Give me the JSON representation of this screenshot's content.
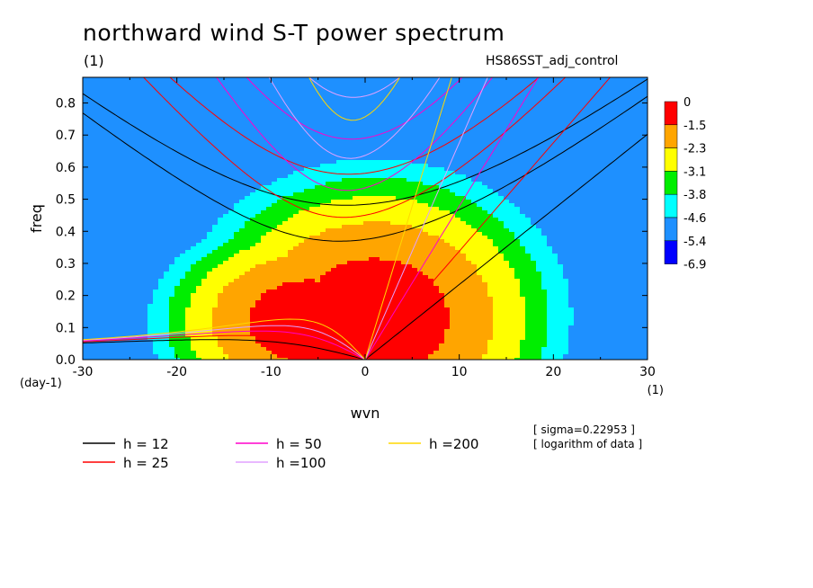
{
  "chart_data": {
    "type": "heatmap",
    "title": "northward wind S-T power spectrum",
    "subtitle": "(1)",
    "run_label": "HS86SST_adj_control",
    "xlabel": "wvn",
    "xlabel_unit": "(1)",
    "ylabel": "freq",
    "ylabel_unit": "(day-1)",
    "xlim": [
      -30,
      30
    ],
    "ylim": [
      0,
      0.88
    ],
    "x_ticks": [
      -30,
      -20,
      -10,
      0,
      10,
      20,
      30
    ],
    "x_tick_labels": [
      "-30",
      "-20",
      "-10",
      "0",
      "10",
      "20",
      "30"
    ],
    "y_ticks": [
      0,
      0.1,
      0.2,
      0.3,
      0.4,
      0.5,
      0.6,
      0.7,
      0.8
    ],
    "y_tick_labels": [
      "0.0",
      "0.1",
      "0.2",
      "0.3",
      "0.4",
      "0.5",
      "0.6",
      "0.7",
      "0.8"
    ],
    "colorbar": {
      "labels": [
        "0",
        "-1.5",
        "-2.3",
        "-3.1",
        "-3.8",
        "-4.6",
        "-5.4",
        "-6.9"
      ],
      "colors": [
        "#ff0000",
        "#ffa500",
        "#ffff00",
        "#00ee00",
        "#00ffff",
        "#1e90ff",
        "#0000ff"
      ]
    },
    "field": {
      "description_levels": [
        -5.4,
        -4.6,
        -3.8,
        -3.1,
        -2.3,
        -1.5
      ],
      "level_colors": [
        "#1e90ff",
        "#00ffff",
        "#00ee00",
        "#ffff00",
        "#ffa500",
        "#ff0000"
      ],
      "base_color": "#1e90ff"
    },
    "dispersion_curves": [
      {
        "label": "h = 12",
        "color": "#000000",
        "h": 12
      },
      {
        "label": "h = 25",
        "color": "#ff0000",
        "h": 25
      },
      {
        "label": "h = 50",
        "color": "#ff00cc",
        "h": 50
      },
      {
        "label": "h =100",
        "color": "#e0a0ff",
        "h": 100
      },
      {
        "label": "h =200",
        "color": "#ffd700",
        "h": 200
      }
    ],
    "notes": [
      "[ sigma=0.22953 ]",
      "[ logarithm of data ]"
    ]
  }
}
